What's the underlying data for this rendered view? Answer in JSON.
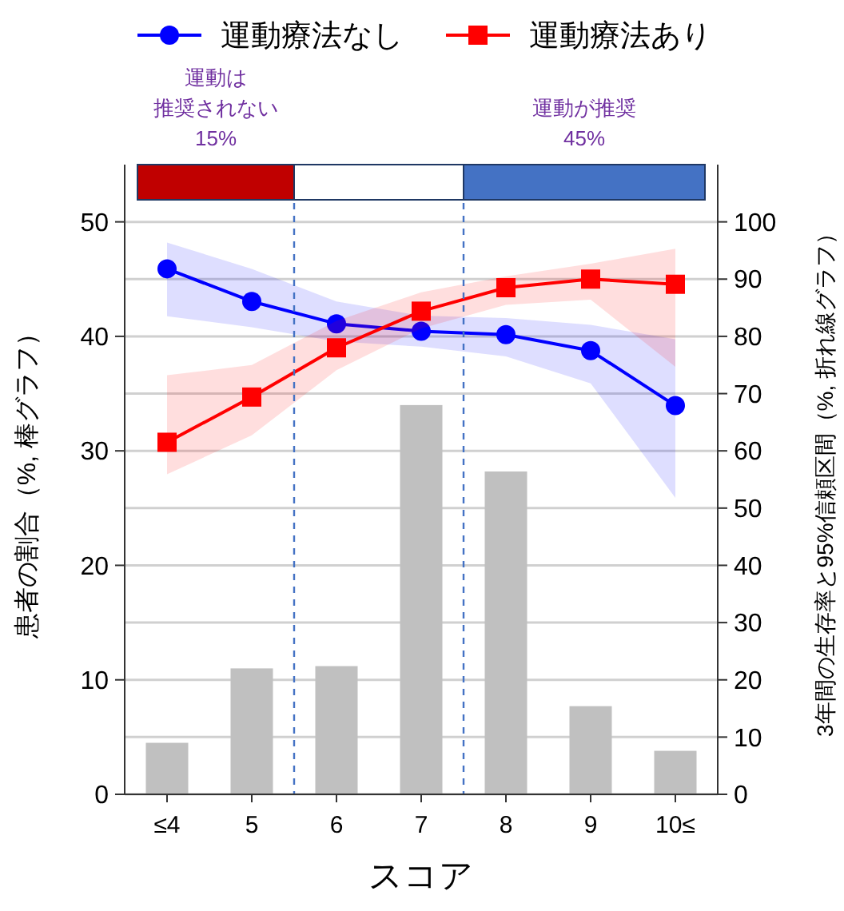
{
  "chart_data": {
    "type": "bar",
    "categories": [
      "≤4",
      "5",
      "6",
      "7",
      "8",
      "9",
      "10≤"
    ],
    "xlabel": "スコア",
    "ylabel": "患者の割合（%, 棒グラフ）",
    "y2label": "3年間の生存率と95%信頼区間（%, 折れ線グラフ）",
    "ylim": [
      0,
      55
    ],
    "yticks": [
      0,
      10,
      20,
      30,
      40,
      50
    ],
    "y2lim": [
      0,
      110
    ],
    "y2ticks": [
      0,
      10,
      20,
      30,
      40,
      50,
      60,
      70,
      80,
      90,
      100
    ],
    "grid": "y",
    "legend": "top",
    "series": [
      {
        "color": "#c0c0c0",
        "values": [
          4.5,
          11.0,
          11.2,
          34.0,
          28.2,
          7.7,
          3.8
        ]
      },
      {
        "type": "line",
        "axis": "y2",
        "name": "運動療法なし",
        "color": "#0000ff",
        "marker": "circle",
        "values": [
          91.8,
          86.1,
          82.2,
          80.9,
          80.3,
          77.5,
          67.9
        ],
        "lower": [
          83.5,
          81.6,
          79.1,
          78.2,
          76.5,
          71.8,
          51.8
        ],
        "upper": [
          96.4,
          91.8,
          86.1,
          83.6,
          83.2,
          82.0,
          79.5
        ]
      },
      {
        "type": "line",
        "axis": "y2",
        "name": "運動療法あり",
        "color": "#ff0000",
        "marker": "square",
        "values": [
          61.5,
          69.4,
          78.0,
          84.4,
          88.5,
          90.0,
          89.1
        ],
        "lower": [
          55.9,
          62.7,
          74.1,
          81.4,
          85.5,
          86.4,
          74.7
        ],
        "upper": [
          73.2,
          75.0,
          82.7,
          87.7,
          90.5,
          92.7,
          95.3
        ]
      }
    ],
    "annotations": [
      "運動は推奨されない",
      "15%",
      "運動が推奨",
      "45%"
    ]
  }
}
